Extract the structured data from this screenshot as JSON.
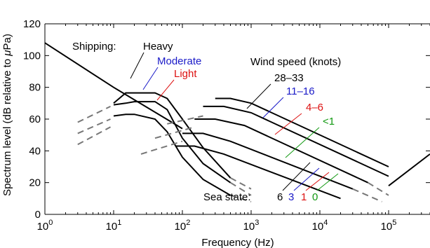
{
  "chart_data": {
    "type": "line",
    "xlabel": "Frequency (Hz)",
    "ylabel_main": "Spectrum level (dB relative to ",
    "ylabel_mu": "μ",
    "ylabel_end": "Pa)",
    "x_scale": "log",
    "xlim": [
      1,
      400000
    ],
    "ylim": [
      0,
      120
    ],
    "x_ticks": [
      {
        "value": 1,
        "exp": "0"
      },
      {
        "value": 10,
        "exp": "1"
      },
      {
        "value": 100,
        "exp": "2"
      },
      {
        "value": 1000,
        "exp": "3"
      },
      {
        "value": 10000,
        "exp": "4"
      },
      {
        "value": 100000,
        "exp": "5"
      }
    ],
    "x_tick_base": "10",
    "y_ticks": [
      0,
      20,
      40,
      60,
      80,
      100,
      120
    ],
    "grid": false,
    "thermal_noise": {
      "x": [
        1,
        10,
        100
      ],
      "y": [
        108,
        80,
        54
      ]
    },
    "thermal_noise_high": {
      "x": [
        100000,
        400000
      ],
      "y": [
        18,
        38
      ]
    },
    "shipping": {
      "title": "Shipping:",
      "series": [
        {
          "name": "Heavy",
          "color": "#000000",
          "solid": {
            "x": [
              10,
              15,
              20,
              40,
              60,
              100,
              200,
              500
            ],
            "y": [
              70,
              76.5,
              76.5,
              76.5,
              73,
              60,
              42,
              23
            ]
          },
          "dash_left": {
            "x": [
              3,
              9
            ],
            "y": [
              58,
              68
            ]
          },
          "dash_right": {
            "x": [
              500,
              1000
            ],
            "y": [
              23,
              16
            ]
          }
        },
        {
          "name": "Moderate",
          "color": "#1a1ac8",
          "solid": {
            "x": [
              10,
              15,
              20,
              40,
              60,
              100,
              200,
              500
            ],
            "y": [
              69,
              70,
              71,
              71,
              66,
              48,
              32,
              20
            ]
          },
          "dash_left": {
            "x": [
              3,
              9
            ],
            "y": [
              51,
              60
            ]
          },
          "dash_right": {
            "x": [
              500,
              1000
            ],
            "y": [
              20,
              12
            ]
          }
        },
        {
          "name": "Light",
          "color": "#dd1111",
          "solid": {
            "x": [
              10,
              15,
              20,
              40,
              60,
              100,
              200,
              500
            ],
            "y": [
              62,
              63,
              63,
              60,
              52,
              36,
              22,
              12
            ]
          },
          "dash_left": {
            "x": [
              3,
              9
            ],
            "y": [
              44,
              55
            ]
          },
          "dash_right": {
            "x": [
              500,
              1000
            ],
            "y": [
              12,
              8
            ]
          }
        }
      ]
    },
    "wind": {
      "title": "Wind speed (knots)",
      "labels": [
        {
          "text": "28–33",
          "color": "#000000"
        },
        {
          "text": "11–16",
          "color": "#1a1ac8"
        },
        {
          "text": "4–6",
          "color": "#dd1111"
        },
        {
          "text": "<1",
          "color": "#119911"
        }
      ]
    },
    "sea_state": {
      "title": "Sea state:",
      "values": [
        {
          "text": "6",
          "color": "#000000"
        },
        {
          "text": "3",
          "color": "#1a1ac8"
        },
        {
          "text": "1",
          "color": "#dd1111"
        },
        {
          "text": "0",
          "color": "#119911"
        }
      ]
    },
    "wind_curves": [
      {
        "color": "#000000",
        "solid": {
          "x": [
            300,
            500,
            1000,
            100000
          ],
          "y": [
            73,
            73,
            70,
            30
          ]
        }
      },
      {
        "color": "#000000",
        "solid": {
          "x": [
            200,
            400,
            1000,
            100000
          ],
          "y": [
            68,
            68,
            64,
            24
          ]
        }
      },
      {
        "color": "#000000",
        "solid": {
          "x": [
            150,
            300,
            800,
            50000
          ],
          "y": [
            60,
            60,
            56,
            20
          ]
        }
      },
      {
        "color": "#000000",
        "solid": {
          "x": [
            100,
            200,
            500,
            30000
          ],
          "y": [
            51,
            51,
            46,
            16
          ]
        }
      },
      {
        "color": "#000000",
        "solid": {
          "x": [
            80,
            150,
            400,
            20000
          ],
          "y": [
            43,
            43,
            38,
            10
          ]
        }
      }
    ],
    "wind_dash_left": [
      {
        "x": [
          60,
          200
        ],
        "y": [
          57,
          62
        ]
      },
      {
        "x": [
          40,
          150
        ],
        "y": [
          48,
          55
        ]
      },
      {
        "x": [
          25,
          100
        ],
        "y": [
          38,
          46
        ]
      }
    ],
    "wind_dash_right": [
      {
        "x": [
          50000,
          100000
        ],
        "y": [
          20,
          12
        ]
      },
      {
        "x": [
          30000,
          80000
        ],
        "y": [
          16,
          8
        ]
      }
    ]
  }
}
